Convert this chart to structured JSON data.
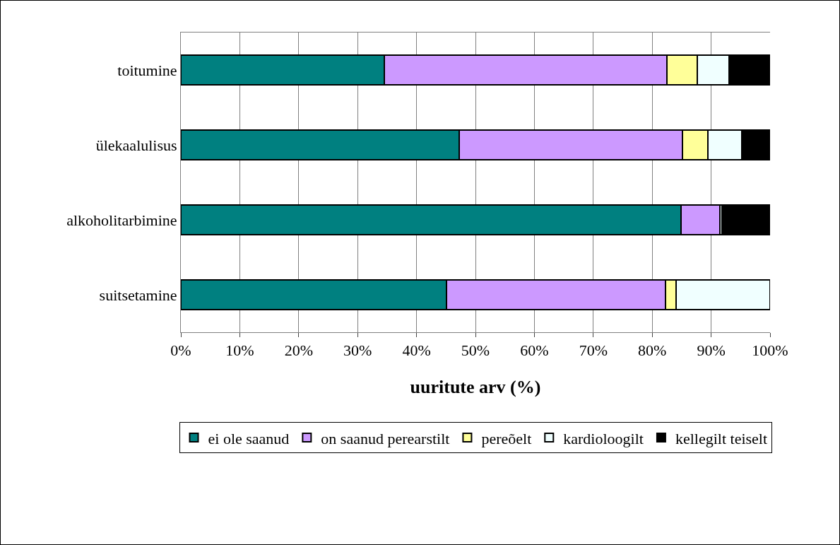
{
  "chart_data": {
    "type": "bar",
    "orientation": "horizontal",
    "stacked": true,
    "xlabel": "uuritute arv (%)",
    "categories": [
      "toitumine",
      "ülekaalulisus",
      "alkoholitarbimine",
      "suitsetamine"
    ],
    "series": [
      {
        "name": "ei ole saanud",
        "color": "#008080",
        "values": [
          34.5,
          47.2,
          84.9,
          45.1
        ]
      },
      {
        "name": "on saanud perearstilt",
        "color": "#cc99ff",
        "values": [
          48,
          37.9,
          6.6,
          37.2
        ]
      },
      {
        "name": "pereõelt",
        "color": "#ffff99",
        "values": [
          5.2,
          4.4,
          0,
          1.8
        ]
      },
      {
        "name": "kardioloogilt",
        "color": "#f0ffff",
        "values": [
          5.3,
          5.7,
          0.4,
          15.9
        ]
      },
      {
        "name": "kellegilt teiselt",
        "color": "#000000",
        "values": [
          7,
          4.8,
          8.1,
          0
        ]
      }
    ],
    "xlim": [
      0,
      100
    ],
    "xticks": [
      {
        "value": 0,
        "label": "0%"
      },
      {
        "value": 10,
        "label": "10%"
      },
      {
        "value": 20,
        "label": "20%"
      },
      {
        "value": 30,
        "label": "30%"
      },
      {
        "value": 40,
        "label": "40%"
      },
      {
        "value": 50,
        "label": "50%"
      },
      {
        "value": 60,
        "label": "60%"
      },
      {
        "value": 70,
        "label": "70%"
      },
      {
        "value": 80,
        "label": "80%"
      },
      {
        "value": 90,
        "label": "90%"
      },
      {
        "value": 100,
        "label": "100%"
      }
    ],
    "grid": "x",
    "legend": "bottom"
  }
}
